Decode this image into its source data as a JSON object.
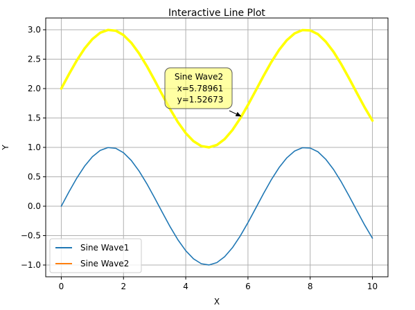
{
  "chart_data": {
    "type": "line",
    "title": "Interactive Line Plot",
    "xlabel": "X",
    "ylabel": "Y",
    "xlim": [
      -0.5,
      10.5
    ],
    "ylim": [
      -1.2,
      3.2
    ],
    "xticks": [
      0,
      2,
      4,
      6,
      8,
      10
    ],
    "yticks": [
      -1.0,
      -0.5,
      0.0,
      0.5,
      1.0,
      1.5,
      2.0,
      2.5,
      3.0
    ],
    "xtick_labels": [
      "0",
      "2",
      "4",
      "6",
      "8",
      "10"
    ],
    "ytick_labels": [
      "−1.0",
      "−0.5",
      "0.0",
      "0.5",
      "1.0",
      "1.5",
      "2.0",
      "2.5",
      "3.0"
    ],
    "grid": true,
    "legend_position": "lower-left",
    "series": [
      {
        "name": "Sine Wave1",
        "color": "#1f77b4",
        "x": [
          0,
          0.25,
          0.5,
          0.75,
          1,
          1.25,
          1.5,
          1.75,
          2,
          2.25,
          2.5,
          2.75,
          3,
          3.25,
          3.5,
          3.75,
          4,
          4.25,
          4.5,
          4.75,
          5,
          5.25,
          5.5,
          5.75,
          6,
          6.25,
          6.5,
          6.75,
          7,
          7.25,
          7.5,
          7.75,
          8,
          8.25,
          8.5,
          8.75,
          9,
          9.25,
          9.5,
          9.75,
          10
        ],
        "y": [
          0,
          0.247,
          0.479,
          0.682,
          0.841,
          0.949,
          0.997,
          0.984,
          0.909,
          0.778,
          0.598,
          0.382,
          0.141,
          -0.108,
          -0.351,
          -0.572,
          -0.757,
          -0.895,
          -0.978,
          -0.999,
          -0.959,
          -0.859,
          -0.706,
          -0.508,
          -0.279,
          -0.033,
          0.215,
          0.45,
          0.657,
          0.823,
          0.938,
          0.994,
          0.989,
          0.925,
          0.798,
          0.625,
          0.412,
          0.174,
          -0.075,
          -0.32,
          -0.544
        ]
      },
      {
        "name": "Sine Wave2",
        "color": "#ffff00",
        "legend_color": "#ff7f0e",
        "x": [
          0,
          0.25,
          0.5,
          0.75,
          1,
          1.25,
          1.5,
          1.75,
          2,
          2.25,
          2.5,
          2.75,
          3,
          3.25,
          3.5,
          3.75,
          4,
          4.25,
          4.5,
          4.75,
          5,
          5.25,
          5.5,
          5.75,
          6,
          6.25,
          6.5,
          6.75,
          7,
          7.25,
          7.5,
          7.75,
          8,
          8.25,
          8.5,
          8.75,
          9,
          9.25,
          9.5,
          9.75,
          10
        ],
        "y": [
          2,
          2.247,
          2.479,
          2.682,
          2.841,
          2.949,
          2.997,
          2.984,
          2.909,
          2.778,
          2.598,
          2.382,
          2.141,
          1.892,
          1.649,
          1.428,
          1.243,
          1.105,
          1.022,
          1.001,
          1.041,
          1.141,
          1.294,
          1.492,
          1.721,
          1.967,
          2.215,
          2.45,
          2.657,
          2.823,
          2.938,
          2.994,
          2.989,
          2.925,
          2.798,
          2.625,
          2.412,
          2.174,
          1.925,
          1.68,
          1.456
        ]
      }
    ],
    "annotation": {
      "series": "Sine Wave2",
      "x": 5.78961,
      "y": 1.52673,
      "lines": [
        "Sine Wave2",
        "x=5.78961",
        "y=1.52673"
      ],
      "box_color": "#ffff66"
    }
  }
}
